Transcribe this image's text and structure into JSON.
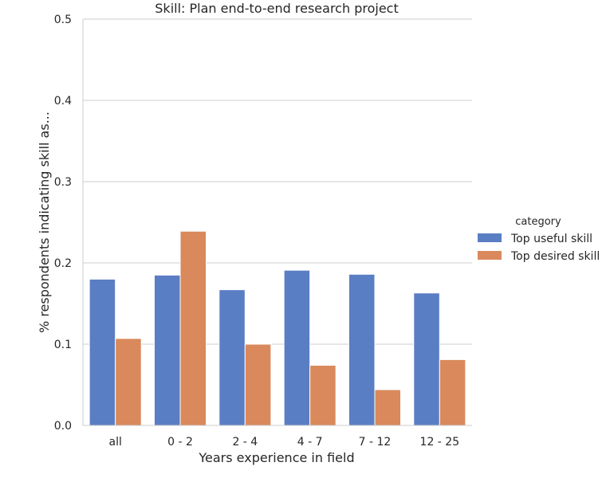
{
  "chart_data": {
    "type": "bar",
    "title": "Skill: Plan end-to-end research project",
    "xlabel": "Years experience in field",
    "ylabel": "% respondents indicating skill as...",
    "categories": [
      "all",
      "0 - 2",
      "2 - 4",
      "4 - 7",
      "7 - 12",
      "12 - 25"
    ],
    "series": [
      {
        "name": "Top useful skill",
        "color": "#5a7ec4",
        "values": [
          0.18,
          0.185,
          0.167,
          0.191,
          0.186,
          0.163
        ]
      },
      {
        "name": "Top desired skill",
        "color": "#d9895c",
        "values": [
          0.107,
          0.239,
          0.1,
          0.074,
          0.044,
          0.081
        ]
      }
    ],
    "ylim": [
      0,
      0.5
    ],
    "yticks": [
      "0.0",
      "0.1",
      "0.2",
      "0.3",
      "0.4",
      "0.5"
    ],
    "grid": "horizontal",
    "legend": {
      "title": "category",
      "placement": "right"
    }
  }
}
